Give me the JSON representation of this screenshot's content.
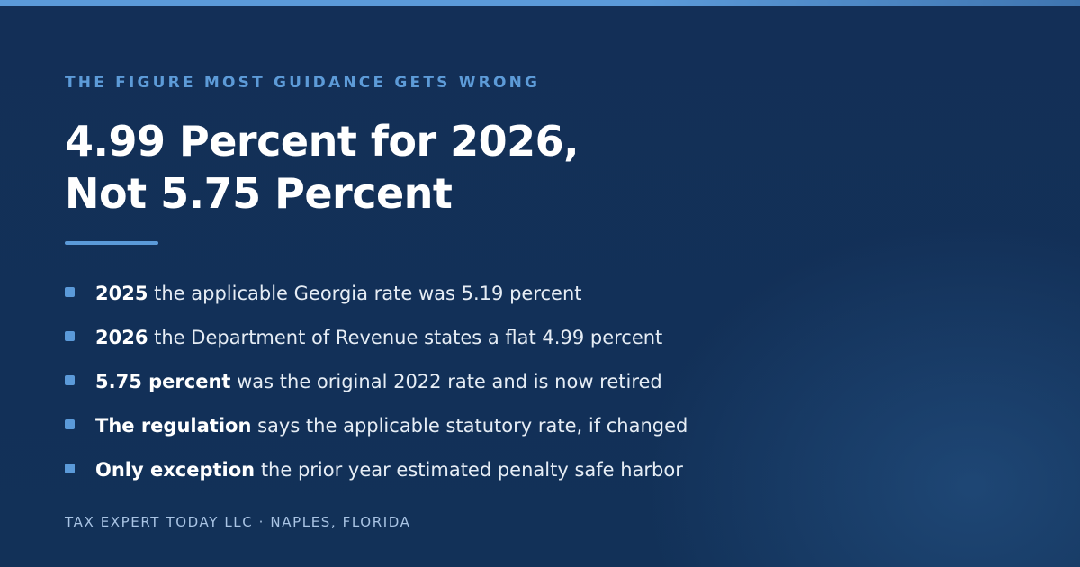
{
  "eyebrow": "THE FIGURE MOST GUIDANCE GETS WRONG",
  "headline": {
    "line1": "4.99 Percent for 2026,",
    "line2": "Not 5.75 Percent"
  },
  "bullets": [
    {
      "lead": "2025",
      "text": " the applicable Georgia rate was 5.19 percent"
    },
    {
      "lead": "2026",
      "text": " the Department of Revenue states a flat 4.99 percent"
    },
    {
      "lead": "5.75 percent",
      "text": " was the original 2022 rate and is now retired"
    },
    {
      "lead": "The regulation",
      "text": " says the applicable statutory rate, if changed"
    },
    {
      "lead": "Only exception",
      "text": " the prior year estimated penalty safe harbor"
    }
  ],
  "footer": "TAX EXPERT TODAY LLC · NAPLES, FLORIDA",
  "colors": {
    "background": "#123158",
    "accent": "#5b9ad9",
    "headline": "#ffffff",
    "footer": "#a9c4e4"
  }
}
